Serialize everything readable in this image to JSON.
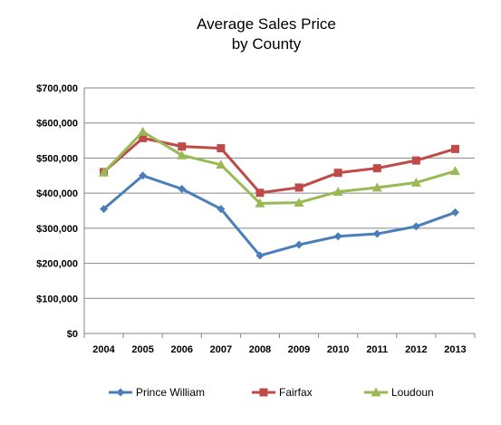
{
  "chart_data": {
    "type": "line",
    "title": [
      "Average Sales Price",
      "by County"
    ],
    "x": [
      "2004",
      "2005",
      "2006",
      "2007",
      "2008",
      "2009",
      "2010",
      "2011",
      "2012",
      "2013"
    ],
    "y_ticks": [
      "$0",
      "$100,000",
      "$200,000",
      "$300,000",
      "$400,000",
      "$500,000",
      "$600,000",
      "$700,000"
    ],
    "ylim": [
      0,
      700000
    ],
    "grid": true,
    "legend_position": "bottom",
    "series": [
      {
        "name": "Prince William",
        "color": "#4a7ebb",
        "marker": "diamond",
        "values": [
          355000,
          450000,
          412000,
          355000,
          222000,
          253000,
          277000,
          284000,
          305000,
          345000
        ]
      },
      {
        "name": "Fairfax",
        "color": "#be4b48",
        "marker": "square",
        "values": [
          460000,
          557000,
          533000,
          528000,
          401000,
          416000,
          458000,
          471000,
          493000,
          526000
        ]
      },
      {
        "name": "Loudoun",
        "color": "#98b954",
        "marker": "triangle",
        "values": [
          459000,
          575000,
          508000,
          481000,
          371000,
          373000,
          404000,
          416000,
          430000,
          463000
        ]
      }
    ]
  }
}
